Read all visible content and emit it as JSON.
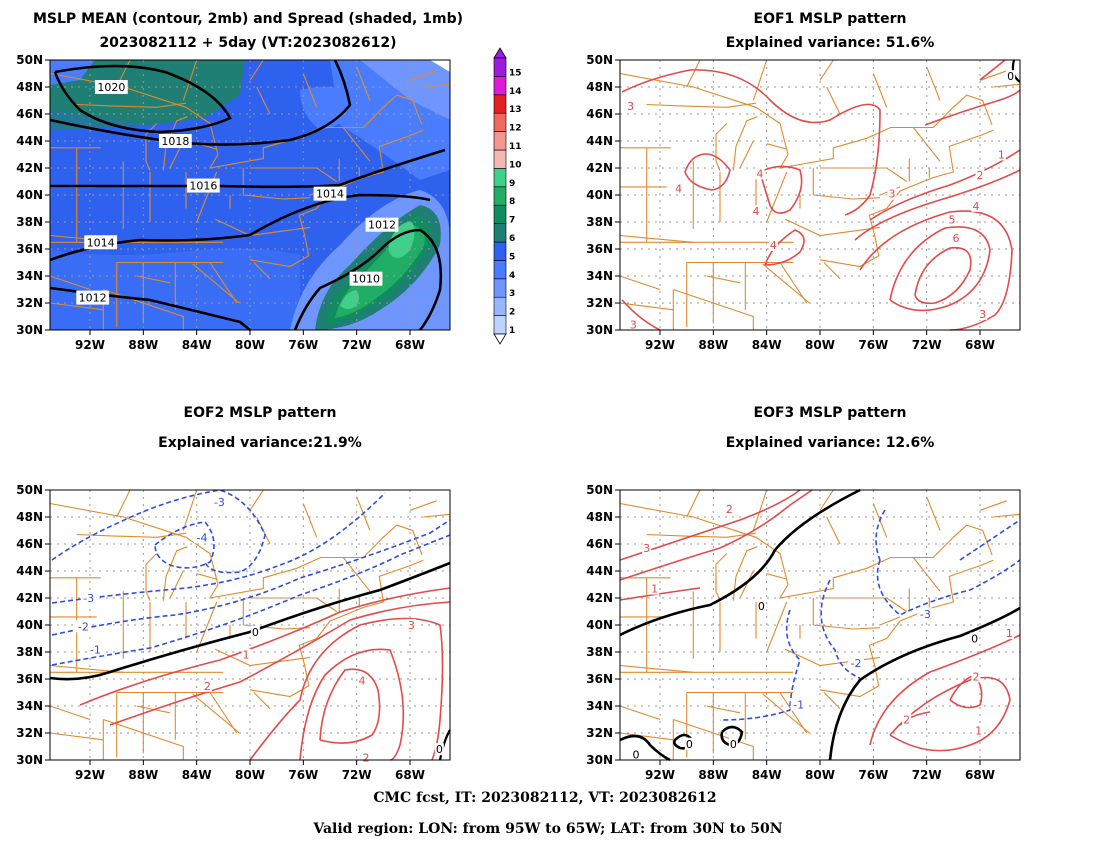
{
  "footer": {
    "line1": "CMC fcst, IT: 2023082112, VT: 2023082612",
    "line2": "Valid region: LON: from 95W to 65W; LAT: from 30N to 50N"
  },
  "colors": {
    "border": "#e08a2e",
    "positive": "#e34a4a",
    "negative": "#2f4ee0",
    "zero": "#000000",
    "grid": "#9a9a9a"
  },
  "colorbar": {
    "levels": [
      1,
      2,
      3,
      4,
      5,
      6,
      7,
      8,
      9,
      10,
      11,
      12,
      13,
      14,
      15
    ],
    "colors": [
      "#bcd3ff",
      "#98b6ff",
      "#6f96ff",
      "#4a7cff",
      "#2e62ee",
      "#1f7f74",
      "#0f8c60",
      "#22ad66",
      "#3fd08a",
      "#f4b8b4",
      "#f39690",
      "#ee6a61",
      "#e41f1f",
      "#e01bd8",
      "#9b1be0"
    ]
  },
  "chart_data": [
    {
      "type": "contour",
      "title": "MSLP MEAN (contour, 2mb) and Spread (shaded, 1mb)",
      "subtitle": "2023082112 + 5day (VT:2023082612)",
      "x_ticks": [
        "92W",
        "88W",
        "84W",
        "80W",
        "76W",
        "72W",
        "68W"
      ],
      "y_ticks": [
        "30N",
        "32N",
        "34N",
        "36N",
        "38N",
        "40N",
        "42N",
        "44N",
        "46N",
        "48N",
        "50N"
      ],
      "lon_range": [
        -95,
        -65
      ],
      "lat_range": [
        30,
        50
      ],
      "contour_interval_mb": 2,
      "spread_interval_mb": 1,
      "contour_labels": [
        {
          "value": "1020",
          "lon": -90.4,
          "lat": 48.0
        },
        {
          "value": "1018",
          "lon": -85.6,
          "lat": 44.0
        },
        {
          "value": "1016",
          "lon": -83.5,
          "lat": 40.7
        },
        {
          "value": "1014",
          "lon": -74.0,
          "lat": 40.1
        },
        {
          "value": "1014",
          "lon": -91.2,
          "lat": 36.5
        },
        {
          "value": "1012",
          "lon": -91.8,
          "lat": 32.4
        },
        {
          "value": "1012",
          "lon": -70.1,
          "lat": 37.8
        },
        {
          "value": "1010",
          "lon": -71.3,
          "lat": 33.8
        }
      ],
      "spread_max_mb": 10
    },
    {
      "type": "contour",
      "title": "EOF1 MSLP pattern",
      "subtitle": "Explained variance: 51.6%",
      "explained_variance_percent": 51.6,
      "x_ticks": [
        "92W",
        "88W",
        "84W",
        "80W",
        "76W",
        "72W",
        "68W"
      ],
      "y_ticks": [
        "30N",
        "32N",
        "34N",
        "36N",
        "38N",
        "40N",
        "42N",
        "44N",
        "46N",
        "48N",
        "50N"
      ],
      "lon_range": [
        -95,
        -65
      ],
      "lat_range": [
        30,
        50
      ],
      "contour_labels": [
        {
          "value": "0",
          "lon": -65.7,
          "lat": 48.8
        },
        {
          "value": "1",
          "lon": -66.4,
          "lat": 43.0
        },
        {
          "value": "2",
          "lon": -68.0,
          "lat": 41.5
        },
        {
          "value": "3",
          "lon": -74.6,
          "lat": 40.1
        },
        {
          "value": "4",
          "lon": -68.3,
          "lat": 39.2
        },
        {
          "value": "5",
          "lon": -70.1,
          "lat": 38.2
        },
        {
          "value": "6",
          "lon": -69.8,
          "lat": 36.8
        },
        {
          "value": "3",
          "lon": -67.8,
          "lat": 31.2
        },
        {
          "value": "4",
          "lon": -84.5,
          "lat": 41.6
        },
        {
          "value": "4",
          "lon": -90.6,
          "lat": 40.5
        },
        {
          "value": "4",
          "lon": -84.8,
          "lat": 38.8
        },
        {
          "value": "4",
          "lon": -83.5,
          "lat": 36.3
        },
        {
          "value": "3",
          "lon": -94.2,
          "lat": 46.6
        },
        {
          "value": "3",
          "lon": -94.0,
          "lat": 30.4
        }
      ]
    },
    {
      "type": "contour",
      "title": "EOF2 MSLP pattern",
      "subtitle": "Explained variance:21.9%",
      "explained_variance_percent": 21.9,
      "x_ticks": [
        "92W",
        "88W",
        "84W",
        "80W",
        "76W",
        "72W",
        "68W"
      ],
      "y_ticks": [
        "30N",
        "32N",
        "34N",
        "36N",
        "38N",
        "40N",
        "42N",
        "44N",
        "46N",
        "48N",
        "50N"
      ],
      "lon_range": [
        -95,
        -65
      ],
      "lat_range": [
        30,
        50
      ],
      "contour_labels": [
        {
          "value": "-3",
          "lon": -82.3,
          "lat": 49.1
        },
        {
          "value": "-4",
          "lon": -83.6,
          "lat": 46.5
        },
        {
          "value": "-3",
          "lon": -92.1,
          "lat": 42.0
        },
        {
          "value": "-2",
          "lon": -92.5,
          "lat": 39.9
        },
        {
          "value": "-1",
          "lon": -91.6,
          "lat": 38.2
        },
        {
          "value": "0",
          "lon": -79.6,
          "lat": 39.5
        },
        {
          "value": "1",
          "lon": -80.3,
          "lat": 37.8
        },
        {
          "value": "2",
          "lon": -83.2,
          "lat": 35.5
        },
        {
          "value": "3",
          "lon": -67.9,
          "lat": 40.0
        },
        {
          "value": "4",
          "lon": -71.6,
          "lat": 35.9
        },
        {
          "value": "2",
          "lon": -71.3,
          "lat": 30.2
        },
        {
          "value": "0",
          "lon": -65.8,
          "lat": 30.8
        }
      ]
    },
    {
      "type": "contour",
      "title": "EOF3 MSLP pattern",
      "subtitle": "Explained variance: 12.6%",
      "explained_variance_percent": 12.6,
      "x_ticks": [
        "92W",
        "88W",
        "84W",
        "80W",
        "76W",
        "72W",
        "68W"
      ],
      "y_ticks": [
        "30N",
        "32N",
        "34N",
        "36N",
        "38N",
        "40N",
        "42N",
        "44N",
        "46N",
        "48N",
        "50N"
      ],
      "lon_range": [
        -95,
        -65
      ],
      "lat_range": [
        30,
        50
      ],
      "contour_labels": [
        {
          "value": "2",
          "lon": -86.8,
          "lat": 48.6
        },
        {
          "value": "3",
          "lon": -93.0,
          "lat": 45.7
        },
        {
          "value": "1",
          "lon": -92.4,
          "lat": 42.7
        },
        {
          "value": "0",
          "lon": -84.4,
          "lat": 41.4
        },
        {
          "value": "-3",
          "lon": -72.1,
          "lat": 40.8
        },
        {
          "value": "-2",
          "lon": -77.3,
          "lat": 37.2
        },
        {
          "value": "-1",
          "lon": -81.6,
          "lat": 34.1
        },
        {
          "value": "0",
          "lon": -68.4,
          "lat": 39.0
        },
        {
          "value": "1",
          "lon": -65.8,
          "lat": 39.4
        },
        {
          "value": "2",
          "lon": -68.3,
          "lat": 36.2
        },
        {
          "value": "2",
          "lon": -73.5,
          "lat": 33.0
        },
        {
          "value": "1",
          "lon": -68.1,
          "lat": 32.2
        },
        {
          "value": "0",
          "lon": -89.8,
          "lat": 31.2
        },
        {
          "value": "0",
          "lon": -86.5,
          "lat": 31.2
        },
        {
          "value": "0",
          "lon": -93.8,
          "lat": 30.4
        }
      ]
    }
  ]
}
